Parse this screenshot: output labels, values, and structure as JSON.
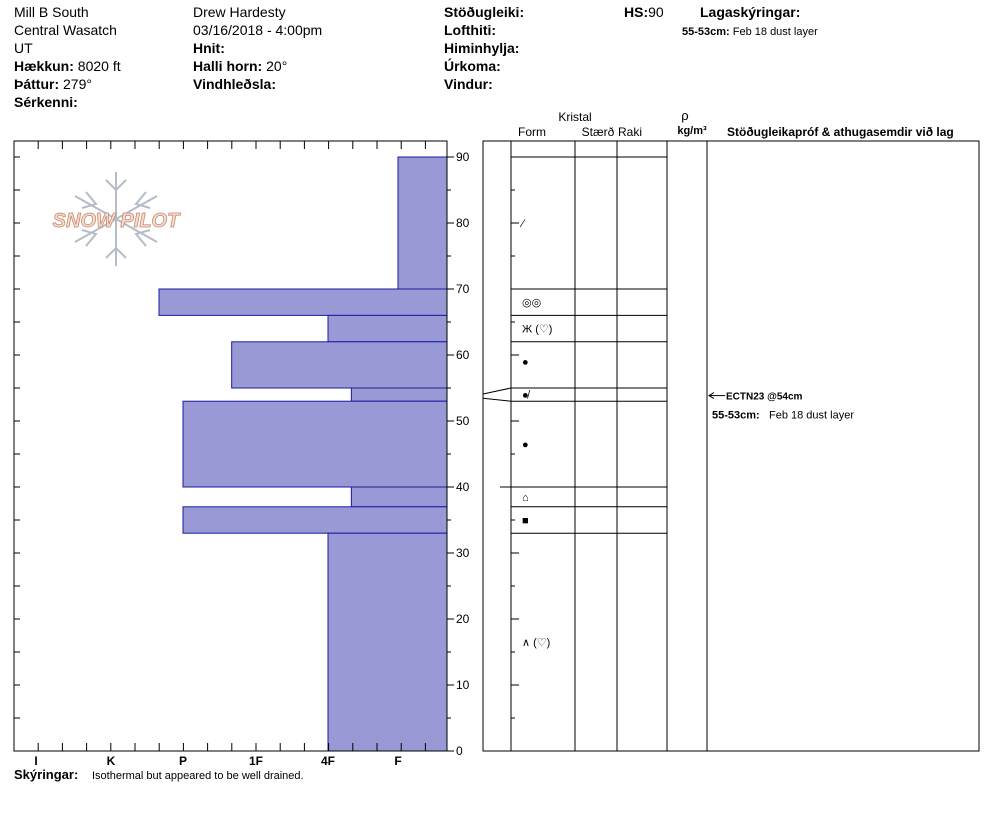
{
  "header": {
    "location": "Mill B South",
    "range": "Central Wasatch",
    "state": "UT",
    "elevation_label": "Hækkun:",
    "elevation_value": "8020 ft",
    "aspect_label": "Þáttur:",
    "aspect_value": "279°",
    "features_label": "Sérkenni:",
    "observer": "Drew Hardesty",
    "datetime": "03/16/2018 - 4:00pm",
    "coords_label": "Hnit:",
    "slope_label": "Halli horn:",
    "slope_value": "20°",
    "wind_loading_label": "Vindhleðsla:",
    "stability_label": "Stöðugleiki:",
    "air_temp_label": "Lofthiti:",
    "sky_label": "Himinhylja:",
    "precip_label": "Úrkoma:",
    "wind_label": "Vindur:",
    "hs_label": "HS:",
    "hs_value": "90",
    "layer_notes_title": "Lagaskýringar:",
    "layer_note_range": "55-53cm:",
    "layer_note_text": "Feb 18 dust layer"
  },
  "column_headers": {
    "crystal": "Kristal",
    "form": "Form",
    "size": "Stærð",
    "moisture": "Raki",
    "rho": "ρ",
    "density_unit": "kg/m³",
    "tests_header": "Stöðugleikapróf & athugasemdir við lag"
  },
  "logo_text": "SNOW PILOT",
  "footer": {
    "notes_label": "Skýringar:",
    "notes_text": "Isothermal but appeared to be well drained."
  },
  "chart_data": {
    "type": "bar",
    "title": "",
    "ylabel": "",
    "ylim": [
      0,
      90
    ],
    "y_ticks": [
      0,
      10,
      20,
      30,
      40,
      50,
      60,
      70,
      80,
      90
    ],
    "hardness_categories": [
      "F",
      "4F",
      "1F",
      "P",
      "K",
      "I"
    ],
    "hardness_layers": [
      {
        "top": 90,
        "bottom": 70,
        "hardness": "F"
      },
      {
        "top": 70,
        "bottom": 66,
        "hardness": "P+"
      },
      {
        "top": 66,
        "bottom": 62,
        "hardness": "4F"
      },
      {
        "top": 62,
        "bottom": 55,
        "hardness": "1F+"
      },
      {
        "top": 55,
        "bottom": 53,
        "hardness": "4F-"
      },
      {
        "top": 53,
        "bottom": 40,
        "hardness": "P"
      },
      {
        "top": 40,
        "bottom": 37,
        "hardness": "4F-"
      },
      {
        "top": 37,
        "bottom": 33,
        "hardness": "P"
      },
      {
        "top": 33,
        "bottom": 0,
        "hardness": "4F"
      }
    ],
    "layer_boundaries": [
      90,
      70,
      66,
      62,
      55,
      53,
      40,
      37,
      33
    ],
    "grain_forms": [
      {
        "depth": 80,
        "symbol": "⁄"
      },
      {
        "depth": 68,
        "symbol": "◎◎"
      },
      {
        "depth": 64,
        "symbol": "Ж (♡)"
      },
      {
        "depth": 59,
        "symbol": "●"
      },
      {
        "depth": 54,
        "symbol": "●̸"
      },
      {
        "depth": 46.5,
        "symbol": "●"
      },
      {
        "depth": 38.5,
        "symbol": "⌂"
      },
      {
        "depth": 35,
        "symbol": "■"
      },
      {
        "depth": 16.5,
        "symbol": "∧ (♡)"
      }
    ],
    "stability_tests": [
      {
        "depth": 54,
        "label": "ECTN23 @54cm"
      }
    ],
    "annotation_range": "55-53cm:",
    "annotation_text": "Feb 18 dust layer"
  }
}
